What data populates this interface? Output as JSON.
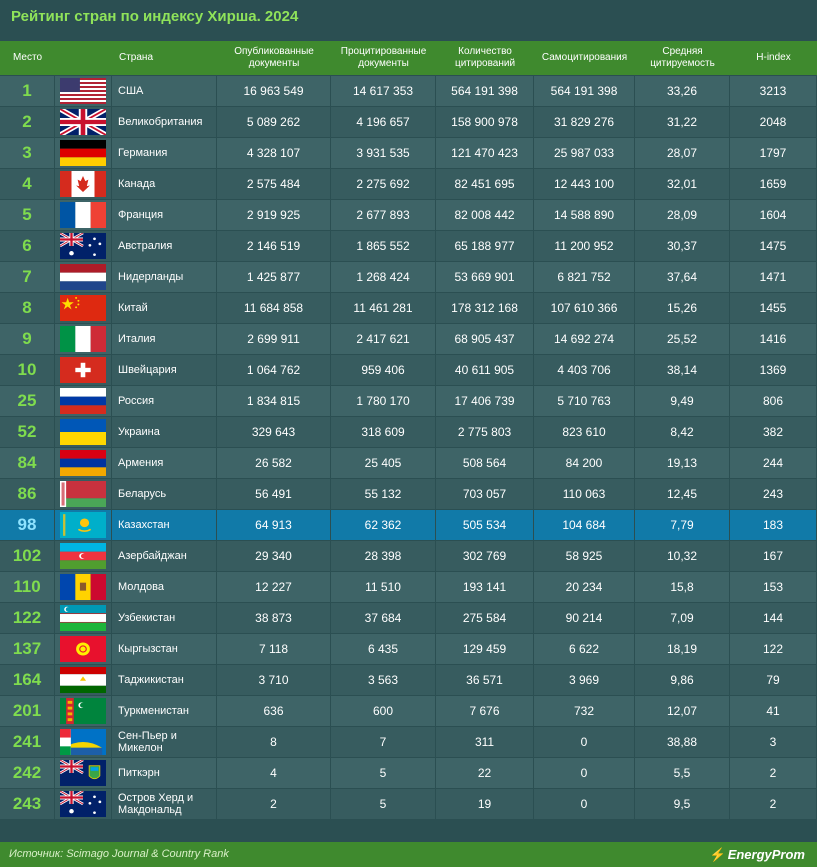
{
  "title": "Рейтинг стран по индексу Хирша. 2024",
  "headers": [
    "Место",
    "Страна",
    "Опубликованные документы",
    "Процитированные документы",
    "Количество цитирований",
    "Самоцитирования",
    "Средняя цитируемость",
    "H-index"
  ],
  "rows": [
    {
      "rank": "1",
      "country": "США",
      "pub": "16 963 549",
      "cited": "14 617 353",
      "cits": "564 191 398",
      "self": "564 191 398",
      "avg": "33,26",
      "h": "3213",
      "flag": "usa"
    },
    {
      "rank": "2",
      "country": "Великобритания",
      "pub": "5 089 262",
      "cited": "4 196 657",
      "cits": "158 900 978",
      "self": "31 829 276",
      "avg": "31,22",
      "h": "2048",
      "flag": "uk"
    },
    {
      "rank": "3",
      "country": "Германия",
      "pub": "4 328 107",
      "cited": "3 931 535",
      "cits": "121 470 423",
      "self": "25 987 033",
      "avg": "28,07",
      "h": "1797",
      "flag": "germany"
    },
    {
      "rank": "4",
      "country": "Канада",
      "pub": "2 575 484",
      "cited": "2 275 692",
      "cits": "82 451 695",
      "self": "12 443 100",
      "avg": "32,01",
      "h": "1659",
      "flag": "canada"
    },
    {
      "rank": "5",
      "country": "Франция",
      "pub": "2 919 925",
      "cited": "2 677 893",
      "cits": "82 008 442",
      "self": "14 588 890",
      "avg": "28,09",
      "h": "1604",
      "flag": "france"
    },
    {
      "rank": "6",
      "country": "Австралия",
      "pub": "2 146 519",
      "cited": "1 865 552",
      "cits": "65 188 977",
      "self": "11 200 952",
      "avg": "30,37",
      "h": "1475",
      "flag": "australia"
    },
    {
      "rank": "7",
      "country": "Нидерланды",
      "pub": "1 425 877",
      "cited": "1 268 424",
      "cits": "53 669 901",
      "self": "6 821 752",
      "avg": "37,64",
      "h": "1471",
      "flag": "netherlands"
    },
    {
      "rank": "8",
      "country": "Китай",
      "pub": "11 684 858",
      "cited": "11 461 281",
      "cits": "178 312 168",
      "self": "107 610 366",
      "avg": "15,26",
      "h": "1455",
      "flag": "china"
    },
    {
      "rank": "9",
      "country": "Италия",
      "pub": "2 699 911",
      "cited": "2 417 621",
      "cits": "68 905 437",
      "self": "14 692 274",
      "avg": "25,52",
      "h": "1416",
      "flag": "italy"
    },
    {
      "rank": "10",
      "country": "Швейцария",
      "pub": "1 064 762",
      "cited": "959 406",
      "cits": "40 611 905",
      "self": "4 403 706",
      "avg": "38,14",
      "h": "1369",
      "flag": "switzerland"
    },
    {
      "rank": "25",
      "country": "Россия",
      "pub": "1 834 815",
      "cited": "1 780 170",
      "cits": "17 406 739",
      "self": "5 710 763",
      "avg": "9,49",
      "h": "806",
      "flag": "russia"
    },
    {
      "rank": "52",
      "country": "Украина",
      "pub": "329 643",
      "cited": "318 609",
      "cits": "2 775 803",
      "self": "823 610",
      "avg": "8,42",
      "h": "382",
      "flag": "ukraine"
    },
    {
      "rank": "84",
      "country": "Армения",
      "pub": "26 582",
      "cited": "25 405",
      "cits": "508 564",
      "self": "84 200",
      "avg": "19,13",
      "h": "244",
      "flag": "armenia"
    },
    {
      "rank": "86",
      "country": "Беларусь",
      "pub": "56 491",
      "cited": "55 132",
      "cits": "703 057",
      "self": "110 063",
      "avg": "12,45",
      "h": "243",
      "flag": "belarus"
    },
    {
      "rank": "98",
      "country": "Казахстан",
      "pub": "64 913",
      "cited": "62 362",
      "cits": "505 534",
      "self": "104 684",
      "avg": "7,79",
      "h": "183",
      "flag": "kazakhstan",
      "highlight": true
    },
    {
      "rank": "102",
      "country": "Азербайджан",
      "pub": "29 340",
      "cited": "28 398",
      "cits": "302 769",
      "self": "58 925",
      "avg": "10,32",
      "h": "167",
      "flag": "azerbaijan"
    },
    {
      "rank": "110",
      "country": "Молдова",
      "pub": "12 227",
      "cited": "11 510",
      "cits": "193 141",
      "self": "20 234",
      "avg": "15,8",
      "h": "153",
      "flag": "moldova"
    },
    {
      "rank": "122",
      "country": "Узбекистан",
      "pub": "38 873",
      "cited": "37 684",
      "cits": "275 584",
      "self": "90 214",
      "avg": "7,09",
      "h": "144",
      "flag": "uzbekistan"
    },
    {
      "rank": "137",
      "country": "Кыргызстан",
      "pub": "7 118",
      "cited": "6 435",
      "cits": "129 459",
      "self": "6 622",
      "avg": "18,19",
      "h": "122",
      "flag": "kyrgyzstan"
    },
    {
      "rank": "164",
      "country": "Таджикистан",
      "pub": "3 710",
      "cited": "3 563",
      "cits": "36 571",
      "self": "3 969",
      "avg": "9,86",
      "h": "79",
      "flag": "tajikistan"
    },
    {
      "rank": "201",
      "country": "Туркменистан",
      "pub": "636",
      "cited": "600",
      "cits": "7 676",
      "self": "732",
      "avg": "12,07",
      "h": "41",
      "flag": "turkmenistan"
    },
    {
      "rank": "241",
      "country": "Сен-Пьер и Микелон",
      "pub": "8",
      "cited": "7",
      "cits": "311",
      "self": "0",
      "avg": "38,88",
      "h": "3",
      "flag": "saint-pierre-miquelon"
    },
    {
      "rank": "242",
      "country": "Питкэрн",
      "pub": "4",
      "cited": "5",
      "cits": "22",
      "self": "0",
      "avg": "5,5",
      "h": "2",
      "flag": "pitcairn"
    },
    {
      "rank": "243",
      "country": "Остров Херд и Макдональд",
      "pub": "2",
      "cited": "5",
      "cits": "19",
      "self": "0",
      "avg": "9,5",
      "h": "2",
      "flag": "heard-mcdonald"
    }
  ],
  "footer": {
    "source": "Источник: Scimago Journal & Country Rank",
    "brand": "EnergyProm"
  },
  "colors": {
    "header_green": "#3f8a2e",
    "title_green": "#8fe35a",
    "background": "#2b4f52",
    "row": "#3e6467",
    "highlight": "#117aa8"
  }
}
